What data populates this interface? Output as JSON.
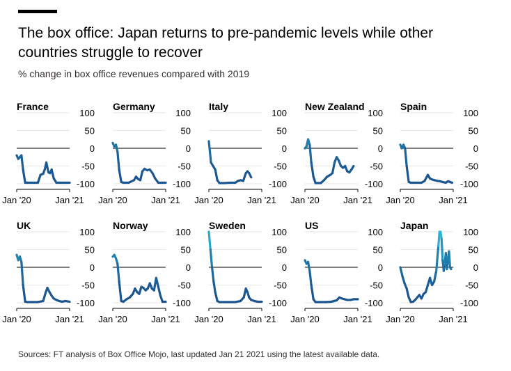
{
  "header": {
    "title": "The box office: Japan returns to pre-pandemic levels while other countries struggle to recover",
    "subtitle": "% change in box office revenues compared with 2019"
  },
  "footer": {
    "source": "Sources: FT analysis of Box Office Mojo, last updated Jan 21 2021 using the latest available data."
  },
  "colors": {
    "line_start": "#2f6fa8",
    "line_end": "#1a5590",
    "japan_high": "#2ec3e0",
    "zero_line": "#33302e",
    "grid": "#e9e6e3"
  },
  "chart_data": [
    {
      "type": "line",
      "title": "France",
      "ylim": [
        -100,
        100
      ],
      "yticks": [
        "100",
        "50",
        "0",
        "-50",
        "-100"
      ],
      "xticks": [
        "Jan '20",
        "Jan '21"
      ],
      "x": [
        0,
        0.03,
        0.06,
        0.09,
        0.12,
        0.16,
        0.2,
        0.3,
        0.4,
        0.45,
        0.5,
        0.53,
        0.56,
        0.6,
        0.63,
        0.66,
        0.7,
        0.75,
        0.8,
        0.86,
        0.92,
        1.0
      ],
      "values": [
        -20,
        -30,
        -25,
        -20,
        -60,
        -97,
        -97,
        -97,
        -97,
        -75,
        -72,
        -60,
        -40,
        -68,
        -70,
        -60,
        -85,
        -97,
        -97,
        -97,
        -97,
        -97
      ]
    },
    {
      "type": "line",
      "title": "Germany",
      "ylim": [
        -100,
        100
      ],
      "yticks": [
        "100",
        "50",
        "0",
        "-50",
        "-100"
      ],
      "xticks": [
        "Jan '20",
        "Jan '21"
      ],
      "x": [
        0,
        0.03,
        0.06,
        0.09,
        0.12,
        0.16,
        0.2,
        0.3,
        0.4,
        0.44,
        0.48,
        0.52,
        0.56,
        0.6,
        0.65,
        0.7,
        0.75,
        0.8,
        0.86,
        0.92,
        1.0
      ],
      "values": [
        15,
        5,
        10,
        -10,
        -60,
        -95,
        -97,
        -97,
        -90,
        -80,
        -87,
        -90,
        -65,
        -58,
        -62,
        -60,
        -70,
        -85,
        -97,
        -97,
        -97
      ]
    },
    {
      "type": "line",
      "title": "Italy",
      "ylim": [
        -100,
        100
      ],
      "yticks": [
        "100",
        "50",
        "0",
        "-50",
        "-100"
      ],
      "xticks": [
        "Jan '20",
        "Jan '21"
      ],
      "x": [
        0,
        0.04,
        0.08,
        0.12,
        0.16,
        0.2,
        0.3,
        0.4,
        0.5,
        0.55,
        0.6,
        0.65,
        0.7,
        0.73,
        0.76,
        0.8
      ],
      "values": [
        20,
        -40,
        -50,
        -60,
        -90,
        -98,
        -98,
        -97,
        -97,
        -92,
        -90,
        -92,
        -70,
        -65,
        -70,
        -82
      ]
    },
    {
      "type": "line",
      "title": "New Zealand",
      "ylim": [
        -100,
        100
      ],
      "yticks": [
        "100",
        "50",
        "0",
        "-50",
        "-100"
      ],
      "xticks": [
        "Jan '20",
        "Jan '21"
      ],
      "x": [
        0,
        0.03,
        0.06,
        0.09,
        0.12,
        0.16,
        0.2,
        0.3,
        0.36,
        0.42,
        0.48,
        0.52,
        0.56,
        0.6,
        0.64,
        0.68,
        0.72,
        0.76,
        0.8,
        0.84,
        0.88,
        0.92
      ],
      "values": [
        0,
        5,
        25,
        10,
        -40,
        -80,
        -98,
        -98,
        -90,
        -80,
        -75,
        -70,
        -40,
        -25,
        -35,
        -50,
        -55,
        -50,
        -65,
        -68,
        -60,
        -50
      ]
    },
    {
      "type": "line",
      "title": "Spain",
      "ylim": [
        -100,
        100
      ],
      "yticks": [
        "100",
        "50",
        "0",
        "-50",
        "-100"
      ],
      "xticks": [
        "Jan '20",
        "Jan '21"
      ],
      "x": [
        0,
        0.03,
        0.06,
        0.09,
        0.12,
        0.16,
        0.2,
        0.3,
        0.4,
        0.46,
        0.52,
        0.56,
        0.6,
        0.65,
        0.7,
        0.75,
        0.8,
        0.86,
        0.9,
        0.94,
        0.98
      ],
      "values": [
        10,
        0,
        10,
        0,
        -50,
        -95,
        -97,
        -97,
        -97,
        -92,
        -75,
        -85,
        -88,
        -90,
        -92,
        -93,
        -95,
        -97,
        -93,
        -95,
        -97
      ]
    },
    {
      "type": "line",
      "title": "UK",
      "ylim": [
        -100,
        100
      ],
      "yticks": [
        "100",
        "50",
        "0",
        "-50",
        "-100"
      ],
      "xticks": [
        "Jan '20",
        "Jan '21"
      ],
      "x": [
        0,
        0.03,
        0.06,
        0.09,
        0.12,
        0.16,
        0.2,
        0.3,
        0.4,
        0.5,
        0.55,
        0.58,
        0.62,
        0.66,
        0.7,
        0.75,
        0.8,
        0.86,
        0.92,
        1.0
      ],
      "values": [
        35,
        20,
        30,
        15,
        -50,
        -97,
        -98,
        -98,
        -98,
        -95,
        -70,
        -58,
        -70,
        -80,
        -88,
        -92,
        -95,
        -97,
        -95,
        -97
      ]
    },
    {
      "type": "line",
      "title": "Norway",
      "ylim": [
        -100,
        100
      ],
      "yticks": [
        "100",
        "50",
        "0",
        "-50",
        "-100"
      ],
      "xticks": [
        "Jan '20",
        "Jan '21"
      ],
      "x": [
        0,
        0.03,
        0.06,
        0.09,
        0.12,
        0.16,
        0.2,
        0.26,
        0.32,
        0.38,
        0.42,
        0.46,
        0.5,
        0.54,
        0.58,
        0.62,
        0.66,
        0.7,
        0.74,
        0.78,
        0.82,
        0.86,
        0.9,
        0.94,
        1.0
      ],
      "values": [
        30,
        35,
        25,
        10,
        -40,
        -95,
        -97,
        -90,
        -85,
        -75,
        -60,
        -70,
        -75,
        -55,
        -58,
        -65,
        -60,
        -45,
        -60,
        -65,
        -30,
        -55,
        -80,
        -97,
        -97
      ]
    },
    {
      "type": "line",
      "title": "Sweden",
      "ylim": [
        -100,
        100
      ],
      "yticks": [
        "100",
        "50",
        "0",
        "-50",
        "-100"
      ],
      "xticks": [
        "Jan '20",
        "Jan '21"
      ],
      "x": [
        0,
        0.03,
        0.06,
        0.09,
        0.12,
        0.16,
        0.2,
        0.3,
        0.4,
        0.5,
        0.6,
        0.66,
        0.7,
        0.73,
        0.76,
        0.8,
        0.86,
        0.92,
        1.0
      ],
      "values": [
        100,
        50,
        0,
        -40,
        -70,
        -95,
        -98,
        -98,
        -98,
        -98,
        -95,
        -85,
        -60,
        -70,
        -85,
        -92,
        -95,
        -97,
        -97
      ]
    },
    {
      "type": "line",
      "title": "US",
      "ylim": [
        -100,
        100
      ],
      "yticks": [
        "100",
        "50",
        "0",
        "-50",
        "-100"
      ],
      "xticks": [
        "Jan '20",
        "Jan '21"
      ],
      "x": [
        0,
        0.03,
        0.06,
        0.09,
        0.12,
        0.16,
        0.2,
        0.3,
        0.4,
        0.5,
        0.55,
        0.6,
        0.65,
        0.7,
        0.75,
        0.8,
        0.86,
        0.92,
        1.0
      ],
      "values": [
        20,
        10,
        15,
        -10,
        -50,
        -90,
        -98,
        -98,
        -98,
        -97,
        -95,
        -93,
        -85,
        -88,
        -90,
        -92,
        -92,
        -90,
        -90
      ]
    },
    {
      "type": "line",
      "title": "Japan",
      "ylim": [
        -100,
        100
      ],
      "yticks": [
        "100",
        "50",
        "0",
        "-50",
        "-100"
      ],
      "xticks": [
        "Jan '20",
        "Jan '21"
      ],
      "x": [
        0,
        0.04,
        0.08,
        0.12,
        0.16,
        0.2,
        0.24,
        0.28,
        0.32,
        0.36,
        0.4,
        0.44,
        0.48,
        0.52,
        0.56,
        0.6,
        0.64,
        0.68,
        0.72,
        0.74,
        0.76,
        0.78,
        0.8,
        0.82,
        0.84,
        0.86,
        0.88,
        0.9,
        0.92,
        0.94,
        0.96
      ],
      "values": [
        0,
        -25,
        -45,
        -60,
        -85,
        -98,
        -97,
        -92,
        -85,
        -78,
        -88,
        -75,
        -70,
        -50,
        -30,
        -50,
        -40,
        -10,
        60,
        100,
        100,
        80,
        20,
        -10,
        10,
        40,
        -5,
        20,
        45,
        0,
        -5
      ]
    }
  ]
}
